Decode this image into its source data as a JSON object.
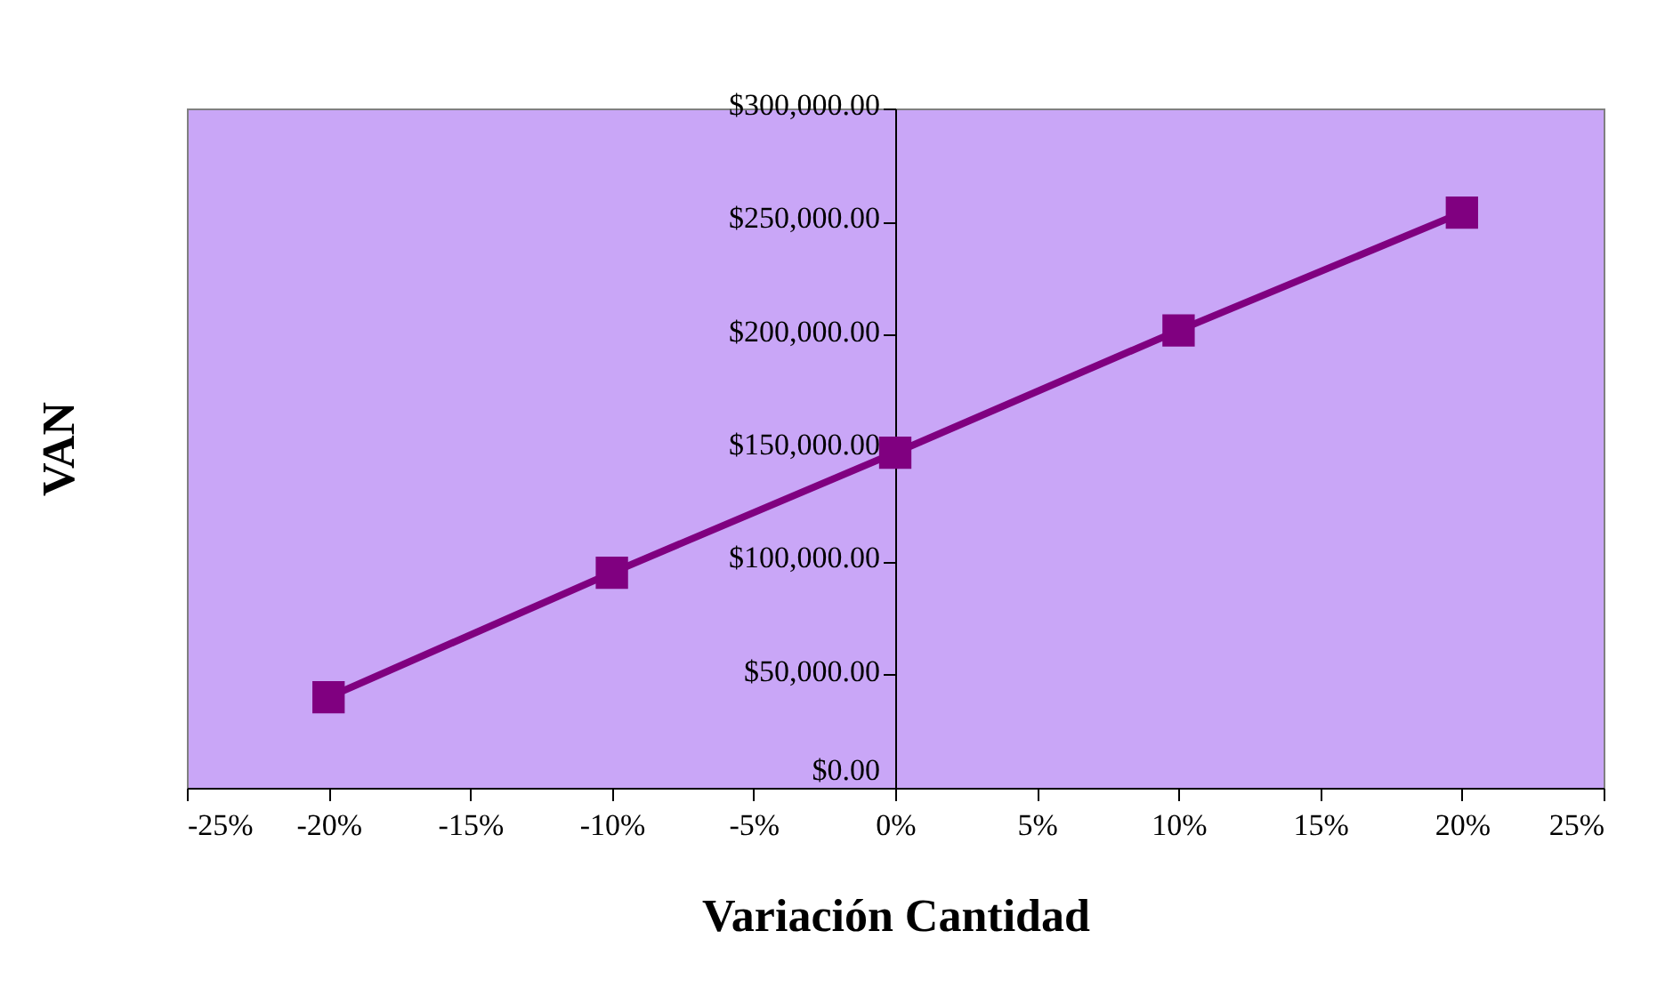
{
  "chart_data": {
    "type": "line",
    "xlabel": "Variación Cantidad",
    "ylabel": "VAN",
    "x": [
      -20,
      -10,
      0,
      10,
      20
    ],
    "series": [
      {
        "color": "#800080",
        "values": [
          40000,
          95000,
          148000,
          202000,
          254000
        ]
      }
    ],
    "xlim": [
      -25,
      25
    ],
    "xticks": [
      {
        "value": -25,
        "label": "-25%"
      },
      {
        "value": -20,
        "label": "-20%"
      },
      {
        "value": -15,
        "label": "-15%"
      },
      {
        "value": -10,
        "label": "-10%"
      },
      {
        "value": -5,
        "label": "-5%"
      },
      {
        "value": 0,
        "label": "0%"
      },
      {
        "value": 5,
        "label": "5%"
      },
      {
        "value": 10,
        "label": "10%"
      },
      {
        "value": 15,
        "label": "15%"
      },
      {
        "value": 20,
        "label": "20%"
      },
      {
        "value": 25,
        "label": "25%"
      }
    ],
    "ylim": [
      0,
      300000
    ],
    "yticks": [
      {
        "value": 0,
        "label": "$0.00"
      },
      {
        "value": 50000,
        "label": "$50,000.00"
      },
      {
        "value": 100000,
        "label": "$100,000.00"
      },
      {
        "value": 150000,
        "label": "$150,000.00"
      },
      {
        "value": 200000,
        "label": "$200,000.00"
      },
      {
        "value": 250000,
        "label": "$250,000.00"
      },
      {
        "value": 300000,
        "label": "$300,000.00"
      }
    ],
    "grid": false,
    "marker": "square",
    "line_style": "solid"
  }
}
